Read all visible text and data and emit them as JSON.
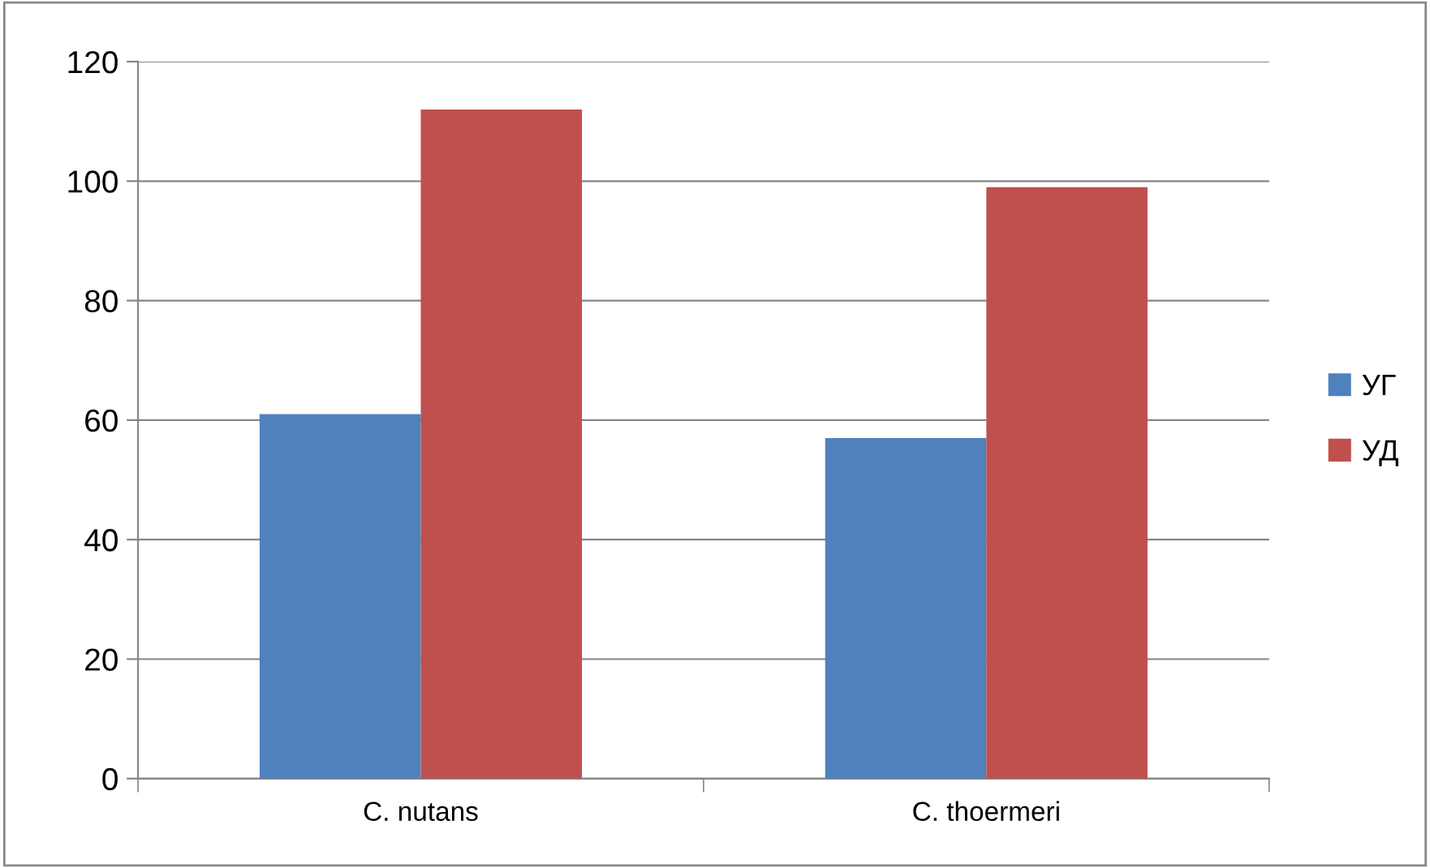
{
  "chart_data": {
    "type": "bar",
    "categories": [
      "C. nutans",
      "C. thoermeri"
    ],
    "series": [
      {
        "name": "УГ",
        "color": "#4f81bd",
        "values": [
          61,
          57
        ]
      },
      {
        "name": "УД",
        "color": "#c0504d",
        "values": [
          112,
          99
        ]
      }
    ],
    "ylim": [
      0,
      120
    ],
    "yticks": [
      0,
      20,
      40,
      60,
      80,
      100,
      120
    ],
    "grid": "y",
    "legend": "right"
  }
}
